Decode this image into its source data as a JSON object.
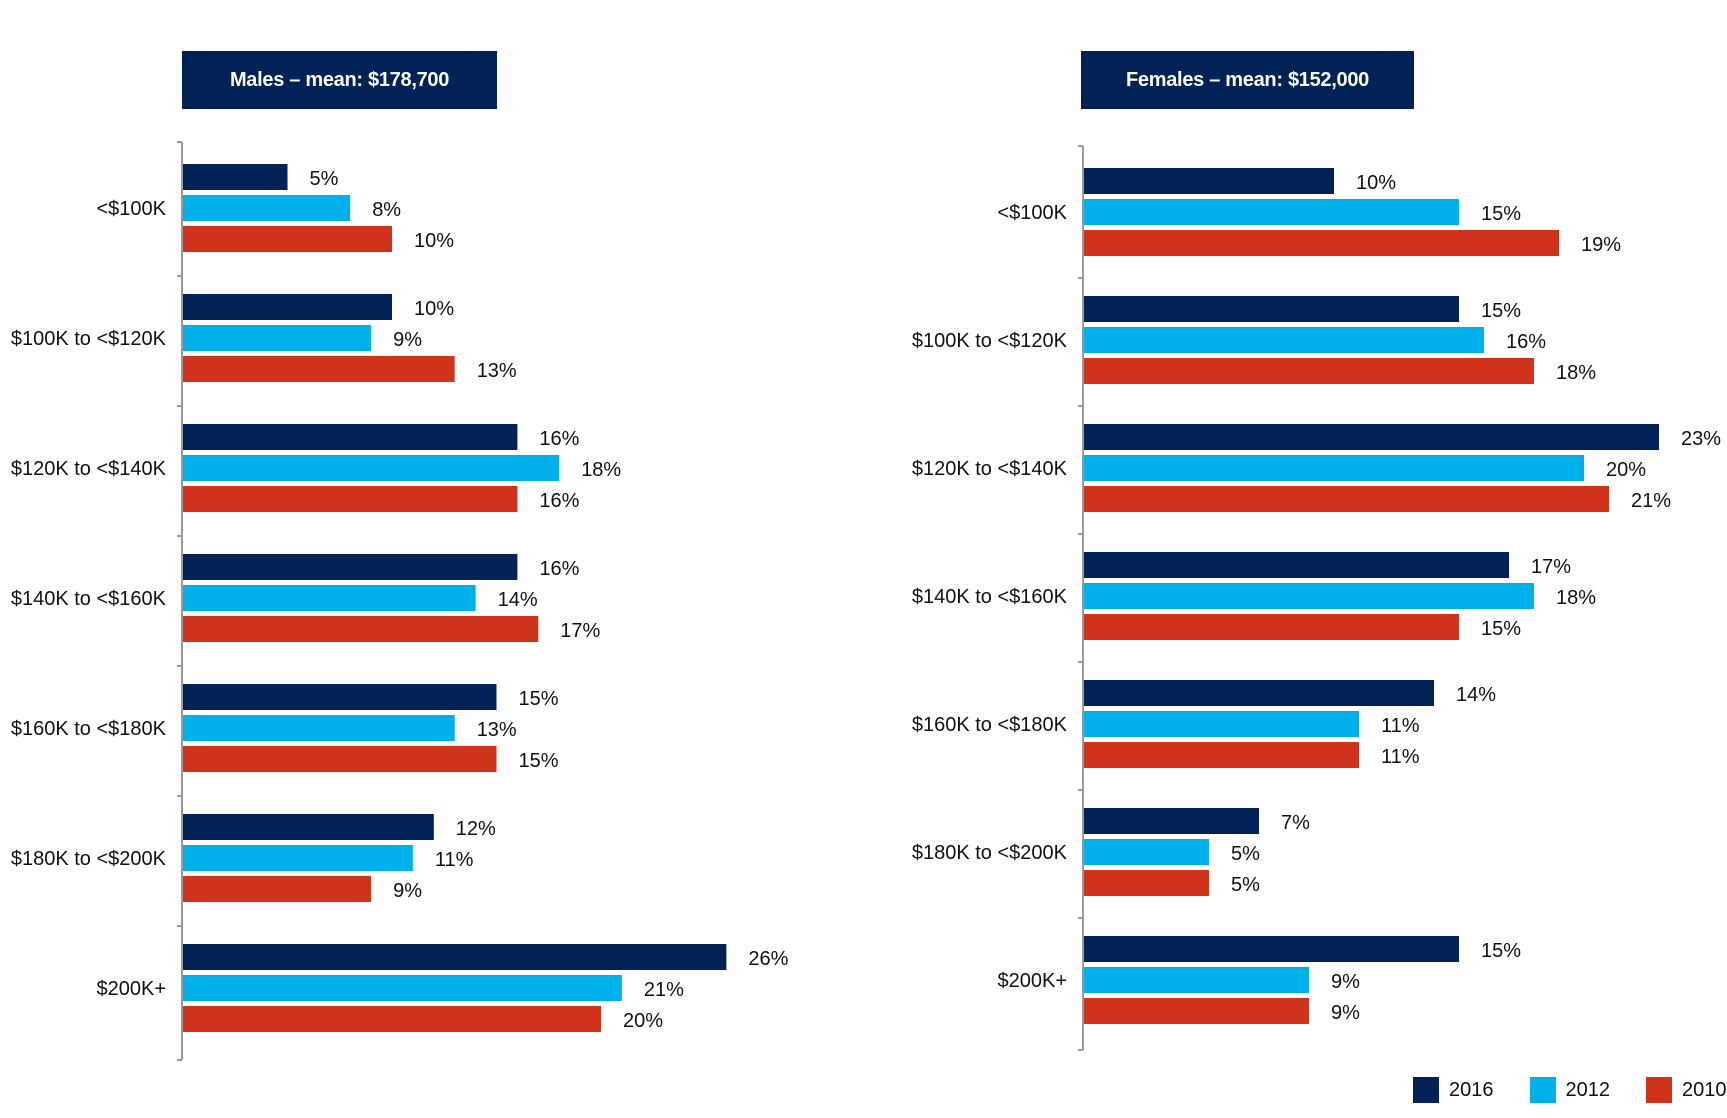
{
  "colors": {
    "2016": "#002255",
    "2012": "#00B0EA",
    "2010": "#D0331B",
    "axis": "#9a9a9a"
  },
  "legend": {
    "items": [
      {
        "label": "2016",
        "color": "#002255"
      },
      {
        "label": "2012",
        "color": "#00B0EA"
      },
      {
        "label": "2010",
        "color": "#D0331B"
      }
    ]
  },
  "chart_data": [
    {
      "type": "bar",
      "orientation": "horizontal",
      "title": "Males – mean: $178,700",
      "categories": [
        "<$100K",
        "$100K to <$120K",
        "$120K to <$140K",
        "$140K to <$160K",
        "$160K to <$180K",
        "$180K to <$200K",
        "$200K+"
      ],
      "series": [
        {
          "name": "2016",
          "values": [
            5,
            10,
            16,
            16,
            15,
            12,
            26
          ]
        },
        {
          "name": "2012",
          "values": [
            8,
            9,
            18,
            14,
            13,
            11,
            21
          ]
        },
        {
          "name": "2010",
          "values": [
            10,
            13,
            16,
            17,
            15,
            9,
            20
          ]
        }
      ],
      "value_suffix": "%",
      "xlim": [
        0,
        30
      ],
      "grid": false,
      "legend_position": "bottom-right"
    },
    {
      "type": "bar",
      "orientation": "horizontal",
      "title": "Females – mean: $152,000",
      "categories": [
        "<$100K",
        "$100K to <$120K",
        "$120K to <$140K",
        "$140K to <$160K",
        "$160K to <$180K",
        "$180K to <$200K",
        "$200K+"
      ],
      "series": [
        {
          "name": "2016",
          "values": [
            10,
            15,
            23,
            17,
            14,
            7,
            15
          ]
        },
        {
          "name": "2012",
          "values": [
            15,
            16,
            20,
            18,
            11,
            5,
            9
          ]
        },
        {
          "name": "2010",
          "values": [
            19,
            18,
            21,
            15,
            11,
            5,
            9
          ]
        }
      ],
      "value_suffix": "%",
      "xlim": [
        0,
        25
      ],
      "grid": false,
      "legend_position": "bottom-right"
    }
  ]
}
